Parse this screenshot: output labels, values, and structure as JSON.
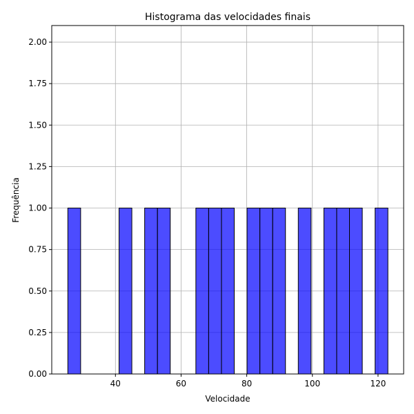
{
  "chart_data": {
    "type": "bar",
    "title": "Histograma das velocidades finais",
    "xlabel": "Velocidade",
    "ylabel": "Frequência",
    "xlim": [
      20.6,
      127.8
    ],
    "ylim": [
      0,
      2.1
    ],
    "grid": true,
    "bar_color": "#0000ff",
    "bar_opacity": 0.7,
    "edge_color": "#000000",
    "bin_start": 25.5,
    "bin_width": 3.9,
    "bin_count": 25,
    "counts": [
      1,
      0,
      0,
      0,
      1,
      0,
      1,
      1,
      0,
      0,
      1,
      1,
      1,
      0,
      1,
      1,
      1,
      0,
      1,
      0,
      1,
      1,
      1,
      0,
      1
    ],
    "x_ticks": [
      40,
      60,
      80,
      100,
      120
    ],
    "x_tick_labels": [
      "40",
      "60",
      "80",
      "100",
      "120"
    ],
    "y_ticks": [
      0,
      0.25,
      0.5,
      0.75,
      1.0,
      1.25,
      1.5,
      1.75,
      2.0
    ],
    "y_tick_labels": [
      "0.00",
      "0.25",
      "0.50",
      "0.75",
      "1.00",
      "1.25",
      "1.50",
      "1.75",
      "2.00"
    ]
  }
}
